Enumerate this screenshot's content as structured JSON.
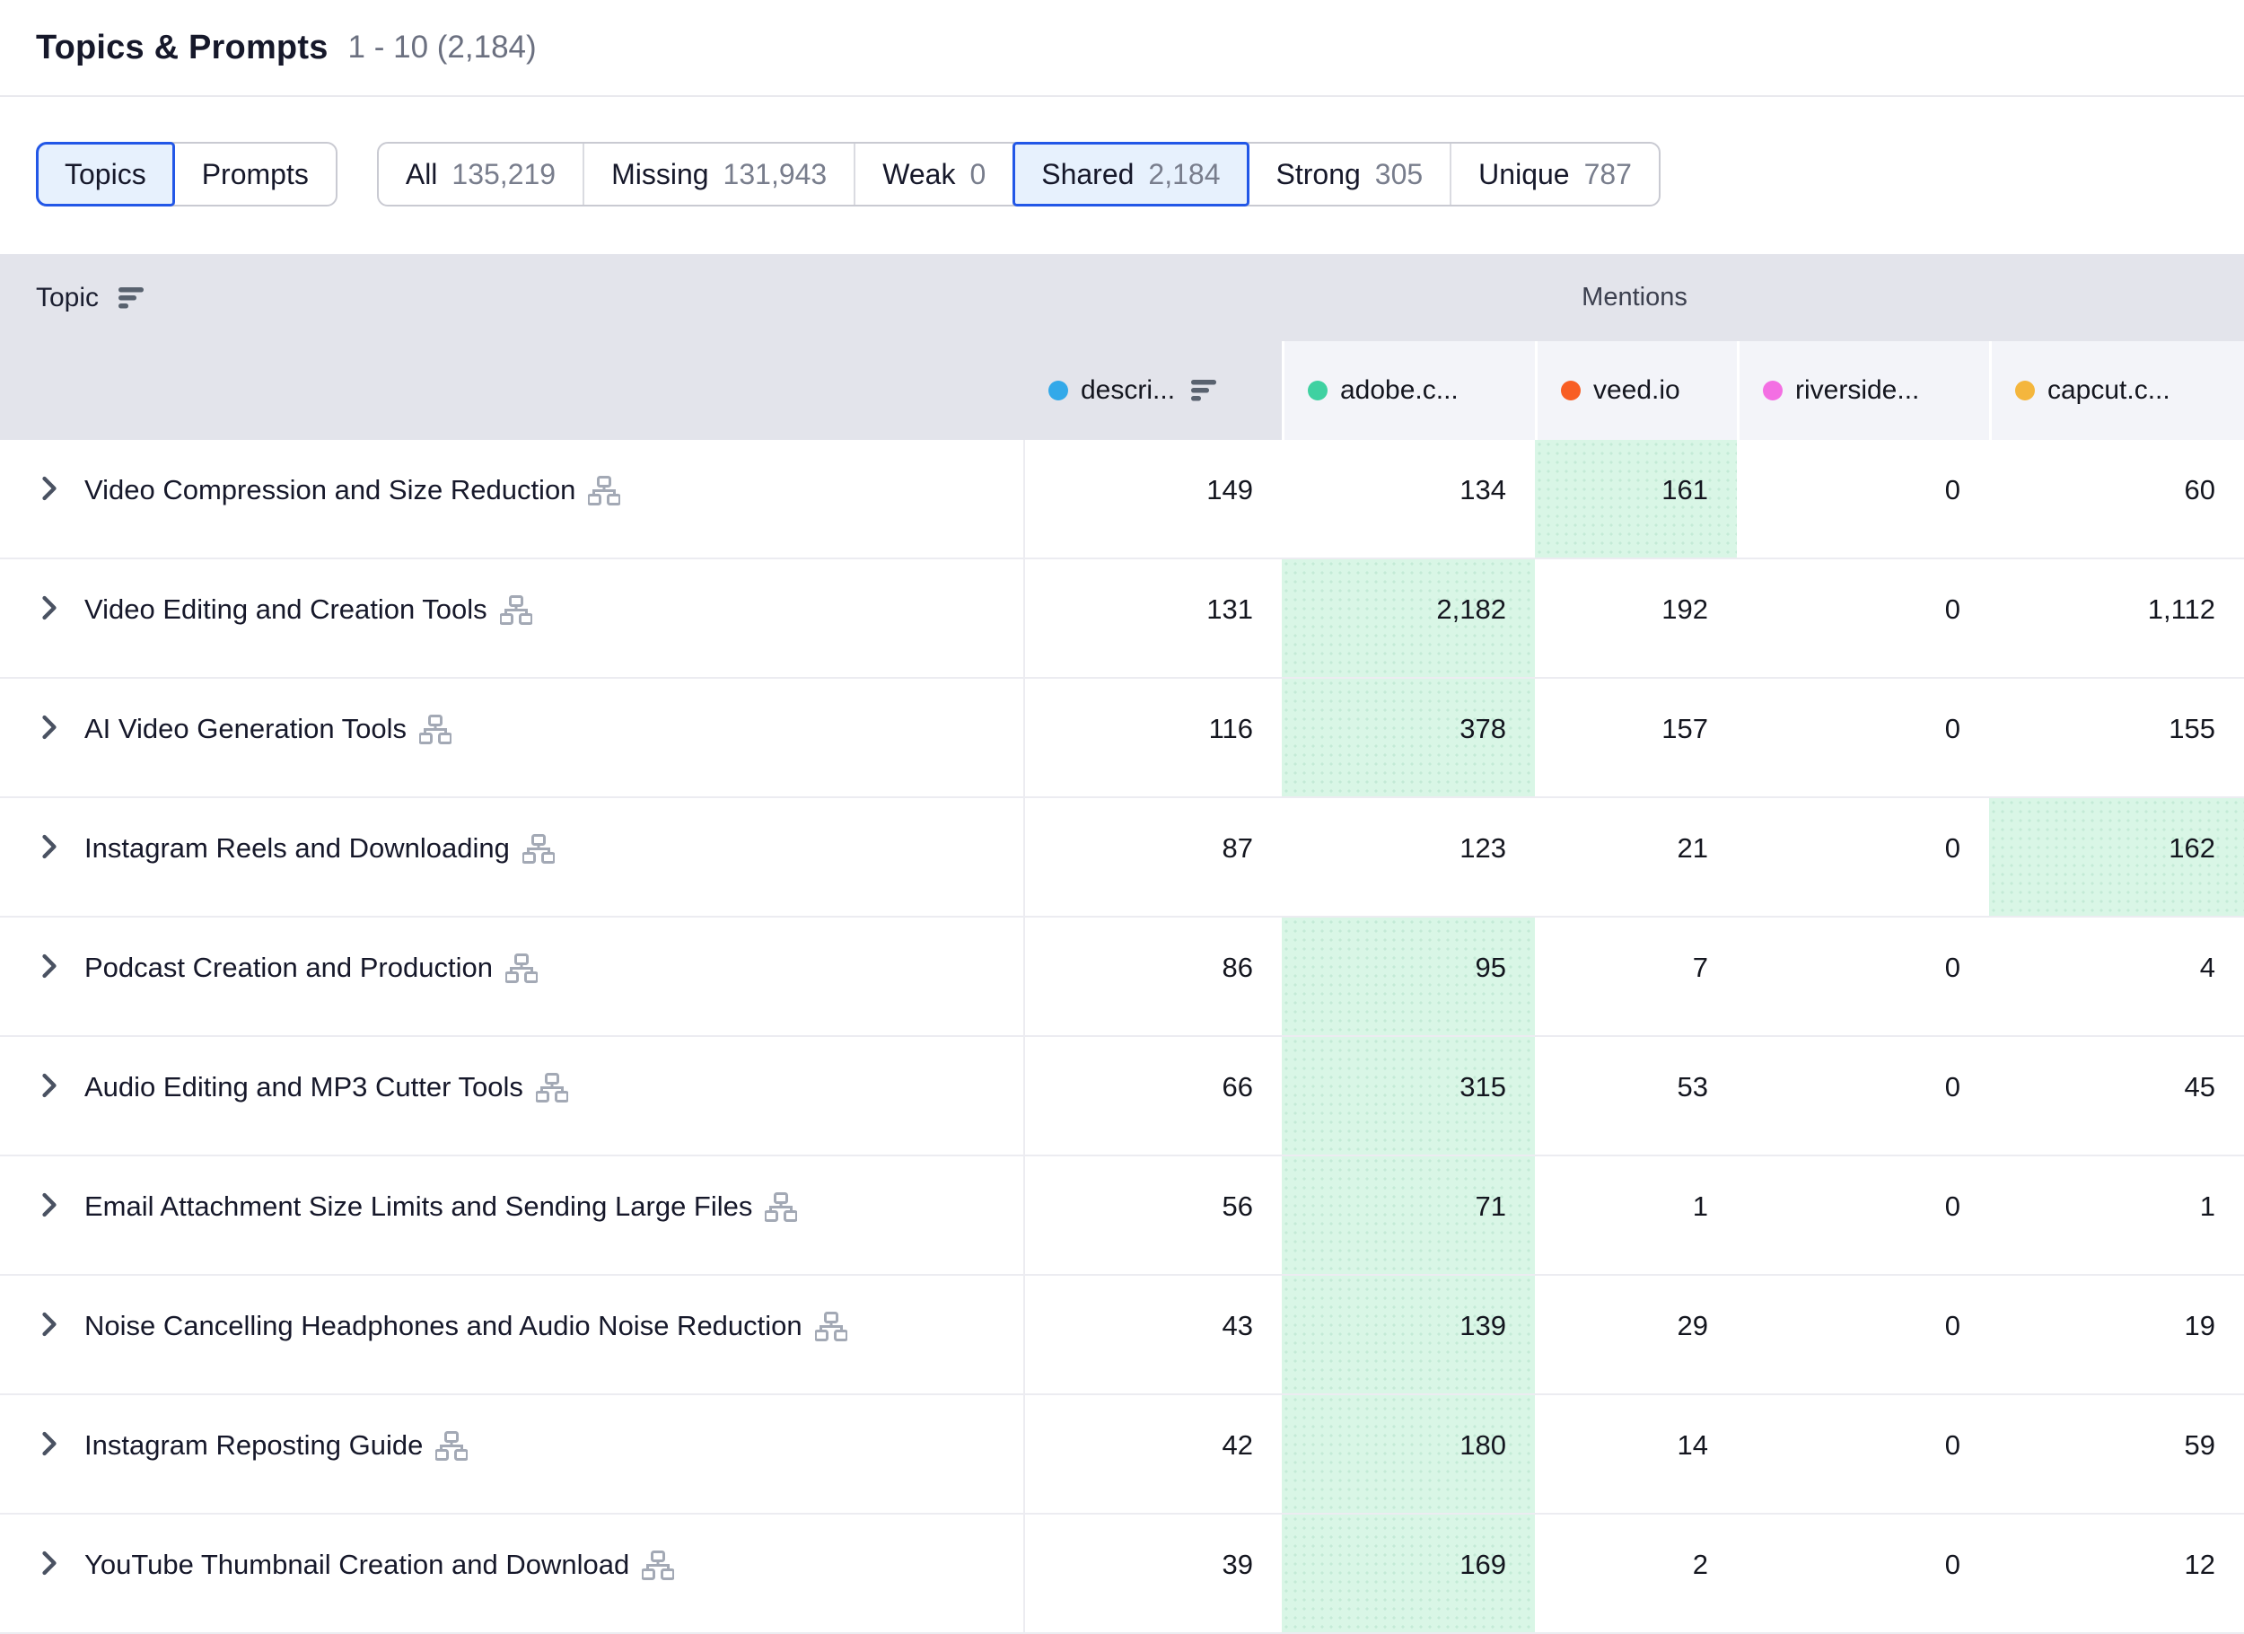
{
  "header": {
    "title": "Topics & Prompts",
    "range": "1 - 10 (2,184)"
  },
  "filters": {
    "view_toggle": [
      {
        "label": "Topics",
        "selected": true
      },
      {
        "label": "Prompts",
        "selected": false
      }
    ],
    "segments": [
      {
        "label": "All",
        "count": "135,219",
        "selected": false
      },
      {
        "label": "Missing",
        "count": "131,943",
        "selected": false
      },
      {
        "label": "Weak",
        "count": "0",
        "selected": false
      },
      {
        "label": "Shared",
        "count": "2,184",
        "selected": true
      },
      {
        "label": "Strong",
        "count": "305",
        "selected": false
      },
      {
        "label": "Unique",
        "count": "787",
        "selected": false
      }
    ]
  },
  "table": {
    "topic_header": "Topic",
    "mentions_header": "Mentions",
    "columns": [
      {
        "label": "descri...",
        "dot_color": "#33A9E9",
        "sorted": true
      },
      {
        "label": "adobe.c...",
        "dot_color": "#3FD1A1",
        "sorted": false
      },
      {
        "label": "veed.io",
        "dot_color": "#F85E24",
        "sorted": false
      },
      {
        "label": "riverside...",
        "dot_color": "#F36FE3",
        "sorted": false
      },
      {
        "label": "capcut.c...",
        "dot_color": "#F4B63D",
        "sorted": false
      }
    ],
    "rows": [
      {
        "topic": "Video Compression and Size Reduction",
        "values": [
          "149",
          "134",
          "161",
          "0",
          "60"
        ],
        "highlight": 2
      },
      {
        "topic": "Video Editing and Creation Tools",
        "values": [
          "131",
          "2,182",
          "192",
          "0",
          "1,112"
        ],
        "highlight": 1
      },
      {
        "topic": "AI Video Generation Tools",
        "values": [
          "116",
          "378",
          "157",
          "0",
          "155"
        ],
        "highlight": 1
      },
      {
        "topic": "Instagram Reels and Downloading",
        "values": [
          "87",
          "123",
          "21",
          "0",
          "162"
        ],
        "highlight": 4
      },
      {
        "topic": "Podcast Creation and Production",
        "values": [
          "86",
          "95",
          "7",
          "0",
          "4"
        ],
        "highlight": 1
      },
      {
        "topic": "Audio Editing and MP3 Cutter Tools",
        "values": [
          "66",
          "315",
          "53",
          "0",
          "45"
        ],
        "highlight": 1
      },
      {
        "topic": "Email Attachment Size Limits and Sending Large Files",
        "values": [
          "56",
          "71",
          "1",
          "0",
          "1"
        ],
        "highlight": 1
      },
      {
        "topic": "Noise Cancelling Headphones and Audio Noise Reduction",
        "values": [
          "43",
          "139",
          "29",
          "0",
          "19"
        ],
        "highlight": 1
      },
      {
        "topic": "Instagram Reposting Guide",
        "values": [
          "42",
          "180",
          "14",
          "0",
          "59"
        ],
        "highlight": 1
      },
      {
        "topic": "YouTube Thumbnail Creation and Download",
        "values": [
          "39",
          "169",
          "2",
          "0",
          "12"
        ],
        "highlight": 1
      }
    ]
  },
  "colors": {
    "accent_blue": "#2257E7",
    "selected_bg": "#E7F1FD",
    "header_bg": "#E3E4EB",
    "column_panel_bg": "#F3F4F9",
    "highlight_green": "#D9F6E6"
  }
}
